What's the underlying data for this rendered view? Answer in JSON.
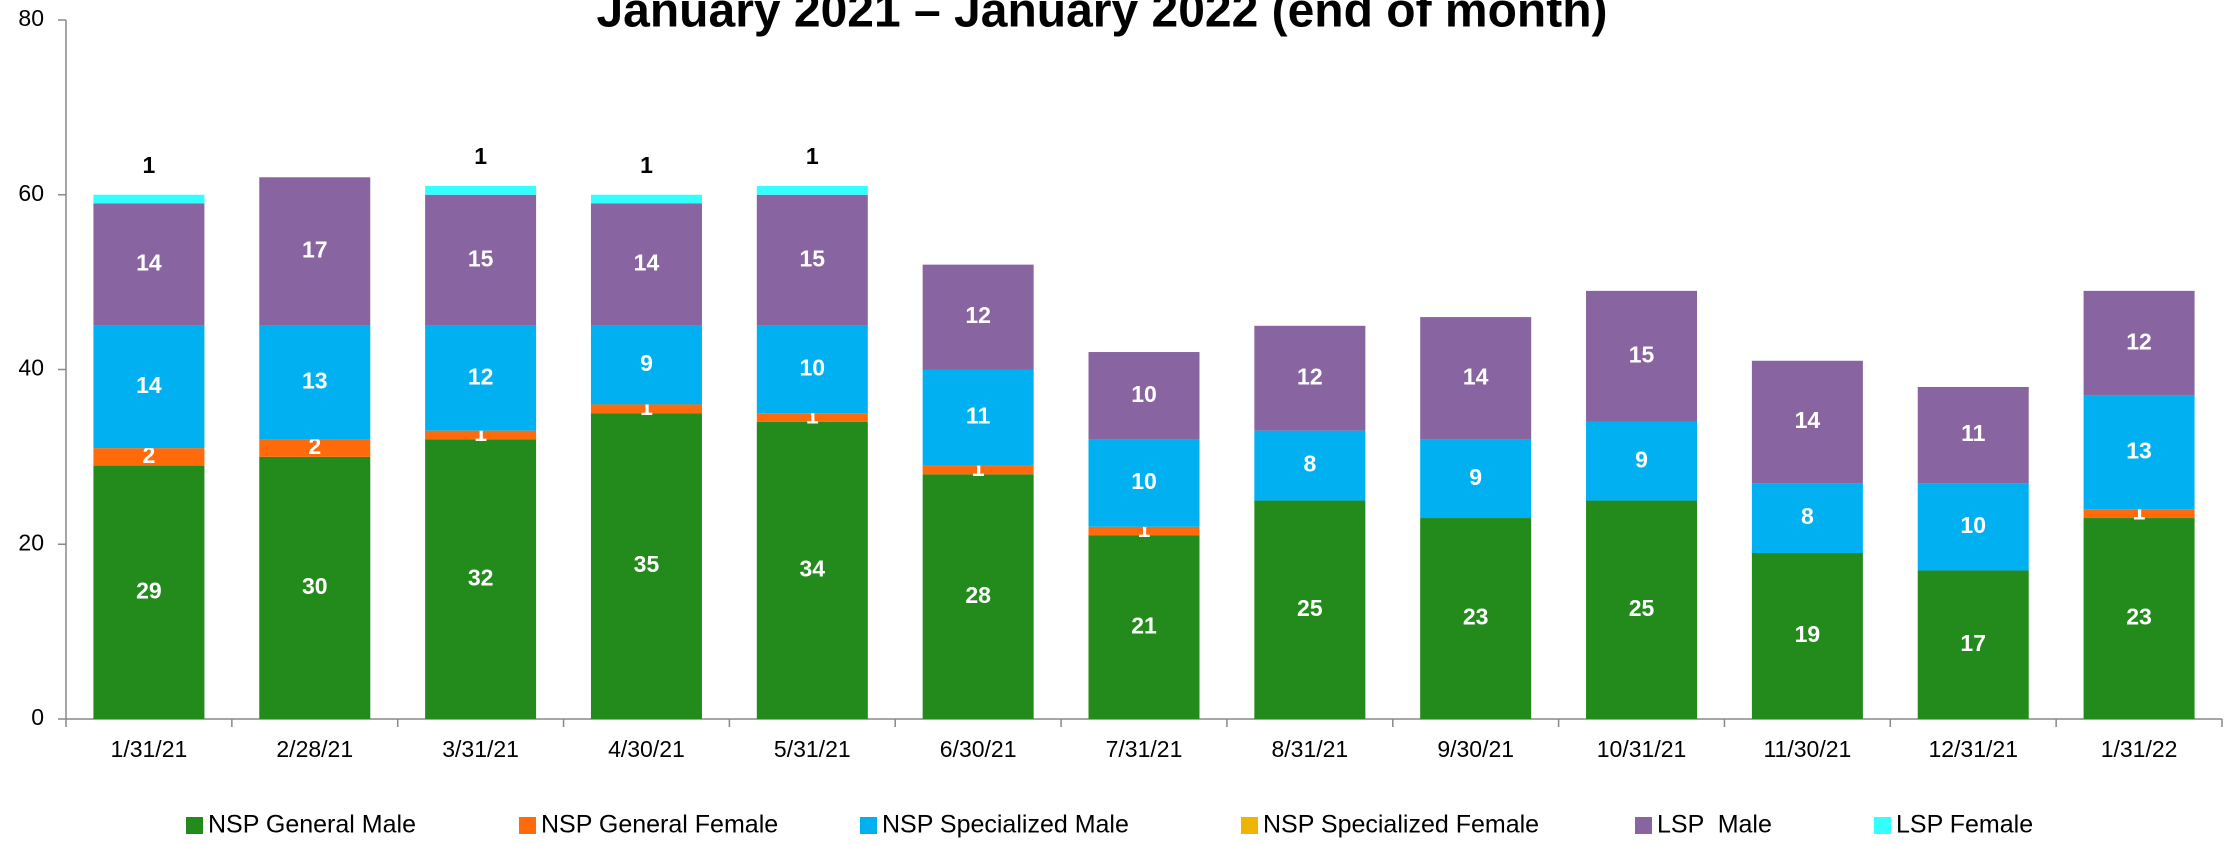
{
  "chart_data": {
    "type": "stacked_bar",
    "title": "January 2021 – January 2022 (end of month)",
    "categories": [
      "1/31/21",
      "2/28/21",
      "3/31/21",
      "4/30/21",
      "5/31/21",
      "6/30/21",
      "7/31/21",
      "8/31/21",
      "9/30/21",
      "10/31/21",
      "11/30/21",
      "12/31/21",
      "1/31/22"
    ],
    "series": [
      {
        "name": "NSP General Male",
        "color": "#228b1c",
        "values": [
          29,
          30,
          32,
          35,
          34,
          28,
          21,
          25,
          23,
          25,
          19,
          17,
          23
        ]
      },
      {
        "name": "NSP General Female",
        "color": "#ff6a0a",
        "values": [
          2,
          2,
          1,
          1,
          1,
          1,
          1,
          null,
          null,
          null,
          null,
          null,
          1
        ]
      },
      {
        "name": "NSP Specialized Male",
        "color": "#00b0f0",
        "values": [
          14,
          13,
          12,
          9,
          10,
          11,
          10,
          8,
          9,
          9,
          8,
          10,
          13
        ]
      },
      {
        "name": "NSP Specialized Female",
        "color": "#f0b400",
        "values": [
          null,
          null,
          null,
          null,
          null,
          null,
          null,
          null,
          null,
          null,
          null,
          null,
          null
        ]
      },
      {
        "name": "LSP  Male",
        "color": "#8864a0",
        "values": [
          14,
          17,
          15,
          14,
          15,
          12,
          10,
          12,
          14,
          15,
          14,
          11,
          12
        ]
      },
      {
        "name": "LSP Female",
        "color": "#33ffff",
        "values": [
          1,
          null,
          1,
          1,
          1,
          null,
          null,
          null,
          null,
          null,
          null,
          null,
          null
        ]
      }
    ],
    "ylim": [
      0,
      80
    ],
    "yticks": [
      0,
      20,
      40,
      60,
      80
    ]
  }
}
